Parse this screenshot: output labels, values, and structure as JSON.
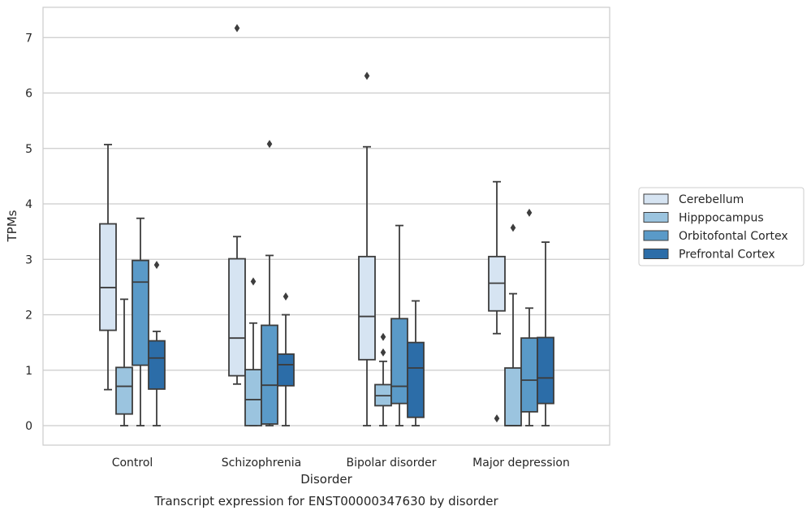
{
  "chart_data": {
    "type": "boxplot",
    "title": "",
    "xlabel": "Disorder",
    "ylabel": "TPMs",
    "caption": "Transcript expression for ENST00000347630 by disorder",
    "categories": [
      "Control",
      "Schizophrenia",
      "Bipolar disorder",
      "Major depression"
    ],
    "ylim": [
      -0.35,
      7.55
    ],
    "yticks": [
      0,
      1,
      2,
      3,
      4,
      5,
      6,
      7
    ],
    "grid": "horizontal",
    "legend_position": "right",
    "series": [
      {
        "name": "Cerebellum",
        "color": "#d6e4f2",
        "boxes": [
          {
            "whislo": 0.65,
            "q1": 1.72,
            "med": 2.49,
            "q3": 3.64,
            "whishi": 5.07,
            "fliers": []
          },
          {
            "whislo": 0.75,
            "q1": 0.9,
            "med": 1.58,
            "q3": 3.01,
            "whishi": 3.41,
            "fliers": [
              7.17
            ]
          },
          {
            "whislo": 0.0,
            "q1": 1.19,
            "med": 1.97,
            "q3": 3.05,
            "whishi": 5.03,
            "fliers": [
              6.31
            ]
          },
          {
            "whislo": 1.66,
            "q1": 2.07,
            "med": 2.57,
            "q3": 3.05,
            "whishi": 4.4,
            "fliers": [
              0.13
            ]
          }
        ]
      },
      {
        "name": "Hipppocampus",
        "color": "#9bc4df",
        "boxes": [
          {
            "whislo": 0.0,
            "q1": 0.21,
            "med": 0.71,
            "q3": 1.05,
            "whishi": 2.28,
            "fliers": []
          },
          {
            "whislo": 0.0,
            "q1": 0.0,
            "med": 0.47,
            "q3": 1.01,
            "whishi": 1.85,
            "fliers": [
              2.6
            ]
          },
          {
            "whislo": 0.0,
            "q1": 0.36,
            "med": 0.54,
            "q3": 0.74,
            "whishi": 1.16,
            "fliers": [
              1.32,
              1.6
            ]
          },
          {
            "whislo": 0.0,
            "q1": 0.0,
            "med": 0.0,
            "q3": 1.04,
            "whishi": 2.38,
            "fliers": [
              3.57
            ]
          }
        ]
      },
      {
        "name": "Orbitofontal Cortex",
        "color": "#5a9ac8",
        "boxes": [
          {
            "whislo": 0.0,
            "q1": 1.09,
            "med": 2.59,
            "q3": 2.98,
            "whishi": 3.74,
            "fliers": []
          },
          {
            "whislo": 0.0,
            "q1": 0.03,
            "med": 0.73,
            "q3": 1.81,
            "whishi": 3.07,
            "fliers": [
              5.08
            ]
          },
          {
            "whislo": 0.0,
            "q1": 0.4,
            "med": 0.71,
            "q3": 1.93,
            "whishi": 3.61,
            "fliers": []
          },
          {
            "whislo": 0.0,
            "q1": 0.25,
            "med": 0.82,
            "q3": 1.58,
            "whishi": 2.12,
            "fliers": [
              3.84
            ]
          }
        ]
      },
      {
        "name": "Prefrontal Cortex",
        "color": "#2c6da8",
        "boxes": [
          {
            "whislo": 0.0,
            "q1": 0.66,
            "med": 1.22,
            "q3": 1.53,
            "whishi": 1.7,
            "fliers": [
              2.9
            ]
          },
          {
            "whislo": 0.0,
            "q1": 0.72,
            "med": 1.1,
            "q3": 1.29,
            "whishi": 2.0,
            "fliers": [
              2.33
            ]
          },
          {
            "whislo": 0.0,
            "q1": 0.15,
            "med": 1.04,
            "q3": 1.5,
            "whishi": 2.25,
            "fliers": []
          },
          {
            "whislo": 0.0,
            "q1": 0.4,
            "med": 0.86,
            "q3": 1.59,
            "whishi": 3.31,
            "fliers": []
          }
        ]
      }
    ]
  }
}
